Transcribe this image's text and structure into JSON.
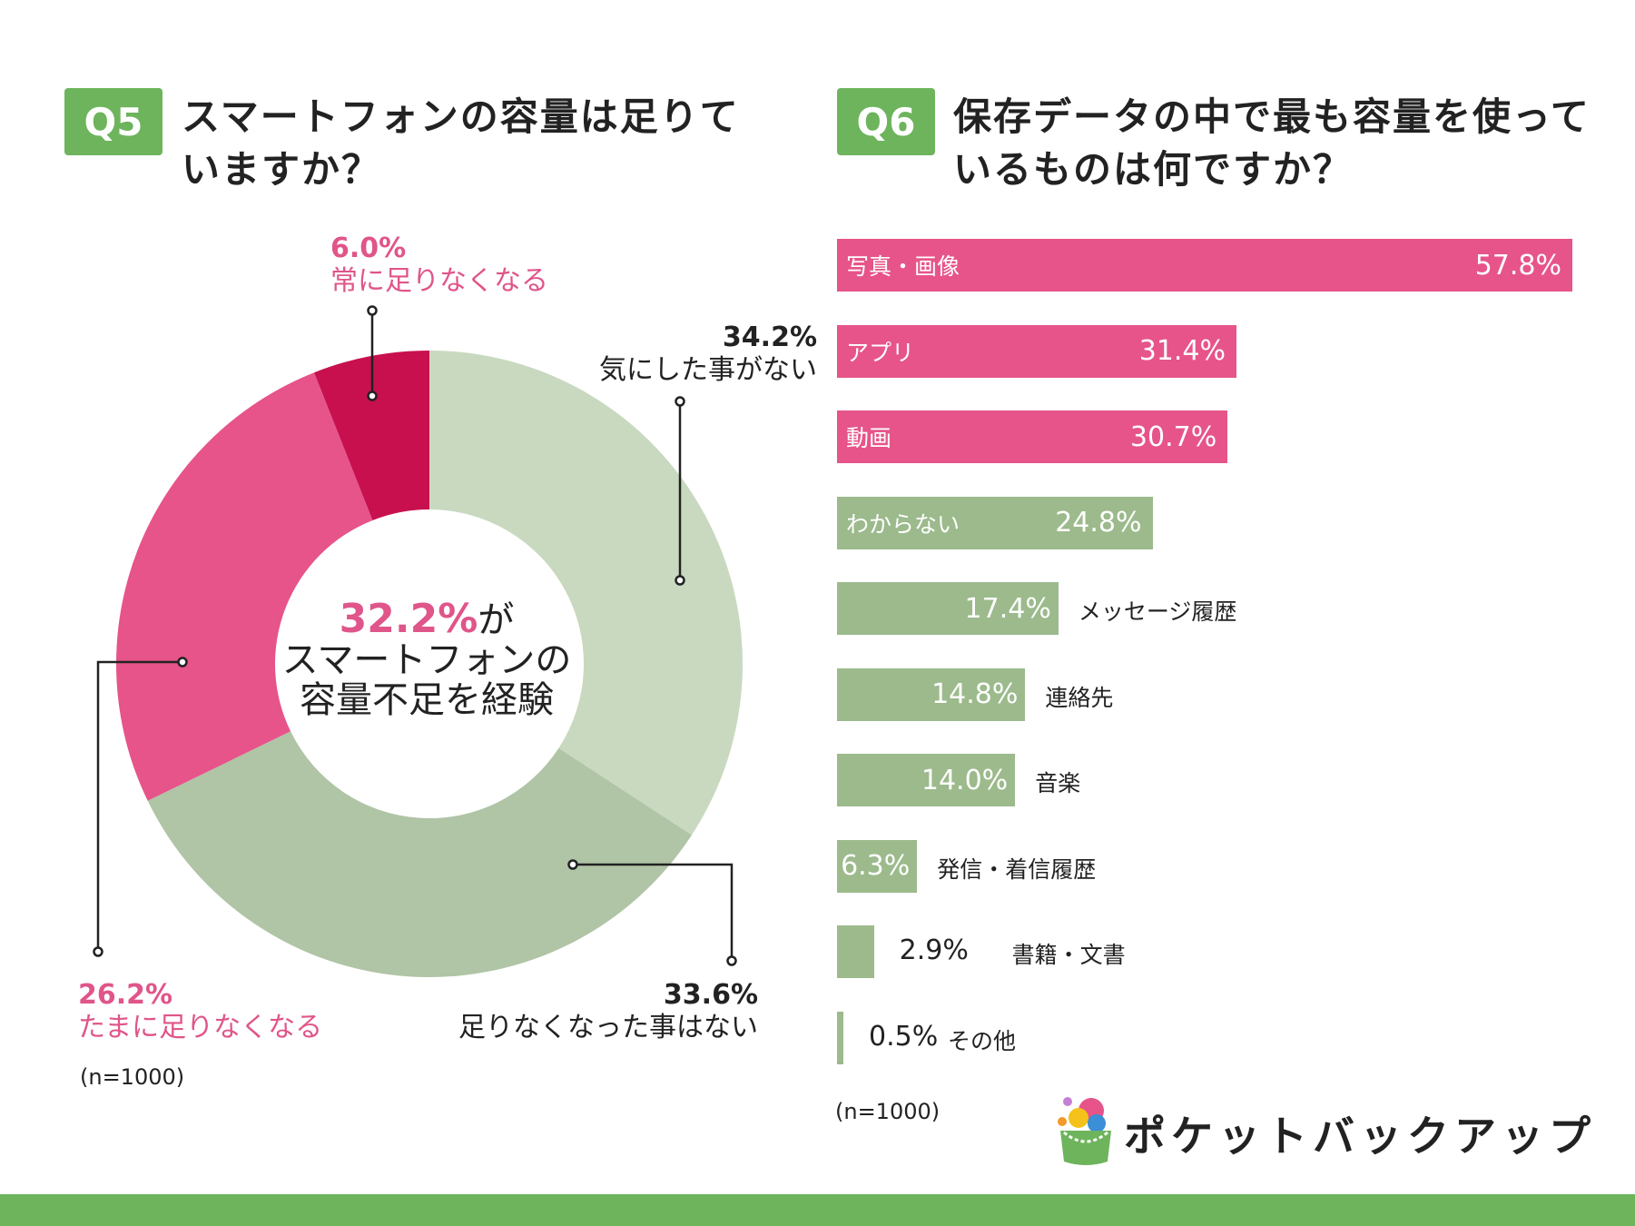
{
  "q5": {
    "badge": "Q5",
    "title_line1": "スマートフォンの容量は足りて",
    "title_line2": "いますか？",
    "center": {
      "pct": "32.2%",
      "suffix": "が",
      "line2": "スマートフォンの",
      "line3": "容量不足を経験"
    },
    "n_note": "(n=1000)"
  },
  "q6": {
    "badge": "Q6",
    "title_line1": "保存データの中で最も容量を使って",
    "title_line2": "いるものは何ですか？",
    "n_note": "(n=1000)"
  },
  "logo": {
    "text": "ポケットバックアップ"
  },
  "colors": {
    "accent_green": "#6db45c",
    "pink": "#e6548a",
    "deep_pink": "#c8104f",
    "light_green": "#c8d9bf",
    "mid_green": "#b0c4a6",
    "bar_green": "#9cba8c"
  },
  "chart_data": [
    {
      "type": "pie",
      "categories": [
        "気にした事がない",
        "足りなくなった事はない",
        "たまに足りなくなる",
        "常に足りなくなる"
      ],
      "values": [
        34.2,
        33.6,
        26.2,
        6.0
      ],
      "value_labels": [
        "34.2%",
        "33.6%",
        "26.2%",
        "6.0%"
      ],
      "colors": [
        "#c8d9bf",
        "#b0c4a6",
        "#e6548a",
        "#c8104f"
      ]
    },
    {
      "type": "bar",
      "orientation": "horizontal",
      "categories": [
        "写真・画像",
        "アプリ",
        "動画",
        "わからない",
        "メッセージ履歴",
        "連絡先",
        "音楽",
        "発信・着信履歴",
        "書籍・文書",
        "その他"
      ],
      "values": [
        57.8,
        31.4,
        30.7,
        24.8,
        17.4,
        14.8,
        14.0,
        6.3,
        2.9,
        0.5
      ],
      "value_labels": [
        "57.8%",
        "31.4%",
        "30.7%",
        "24.8%",
        "17.4%",
        "14.8%",
        "14.0%",
        "6.3%",
        "2.9%",
        "0.5%"
      ],
      "colors": [
        "#e6548a",
        "#e6548a",
        "#e6548a",
        "#9cba8c",
        "#9cba8c",
        "#9cba8c",
        "#9cba8c",
        "#9cba8c",
        "#9cba8c",
        "#9cba8c"
      ]
    }
  ]
}
